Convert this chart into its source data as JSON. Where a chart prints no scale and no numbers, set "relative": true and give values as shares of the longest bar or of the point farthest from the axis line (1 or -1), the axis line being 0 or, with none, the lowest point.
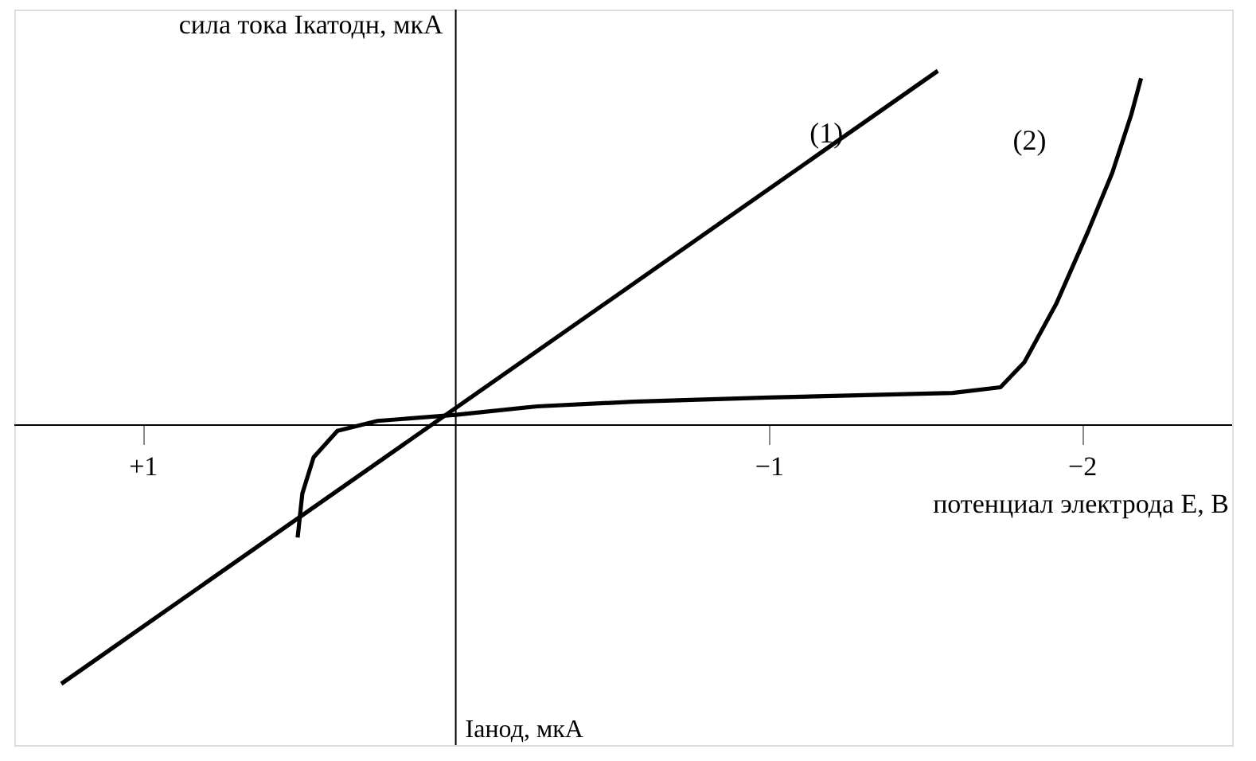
{
  "chart_data": {
    "type": "line",
    "relative": true,
    "ylabel": "сила тока Iкатодн, мкА",
    "xlabel": "потенциал электрода E, В",
    "annotations": [
      "Iанод, мкА"
    ],
    "xlim": [
      1.41,
      -2.48
    ],
    "xticks": [
      {
        "value": 1,
        "label": "+1"
      },
      {
        "value": -1,
        "label": "−1"
      },
      {
        "value": -2,
        "label": "−2"
      }
    ],
    "grid": false,
    "marker": "none",
    "line_style": "solid",
    "series": [
      {
        "name": "(1)",
        "color": "#000000",
        "x": [
          1.26,
          -1.54
        ],
        "values": [
          -0.73,
          1.0
        ]
      },
      {
        "name": "(2)",
        "color": "#000000",
        "x": [
          0.505,
          0.49,
          0.454,
          0.378,
          0.25,
          0,
          -0.26,
          -0.566,
          -1.0,
          -1.587,
          -1.74,
          -1.816,
          -1.918,
          -2.02,
          -2.097,
          -2.158,
          -2.189
        ],
        "values": [
          -0.317,
          -0.193,
          -0.091,
          -0.016,
          0.012,
          0.029,
          0.053,
          0.066,
          0.078,
          0.091,
          0.107,
          0.177,
          0.342,
          0.547,
          0.712,
          0.877,
          0.979
        ]
      }
    ]
  }
}
